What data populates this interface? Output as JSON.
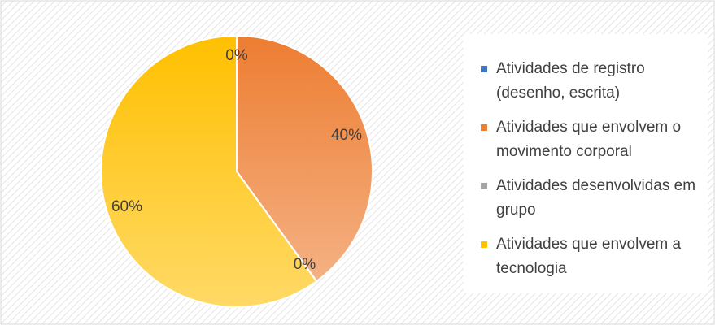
{
  "chart_data": {
    "type": "pie",
    "series": [
      {
        "name": "Atividades de registro (desenho, escrita)",
        "color": "#4472c4"
      },
      {
        "name": "Atividades que envolvem o movimento corporal",
        "color": "#ed7d31"
      },
      {
        "name": "Atividades desenvolvidas em grupo",
        "color": "#a5a5a5"
      },
      {
        "name": "Atividades que envolvem a tecnologia",
        "color": "#ffc000"
      }
    ],
    "values": [
      0,
      40,
      0,
      60
    ],
    "value_labels": [
      "0%",
      "40%",
      "0%",
      "60%"
    ],
    "legend": "right"
  }
}
